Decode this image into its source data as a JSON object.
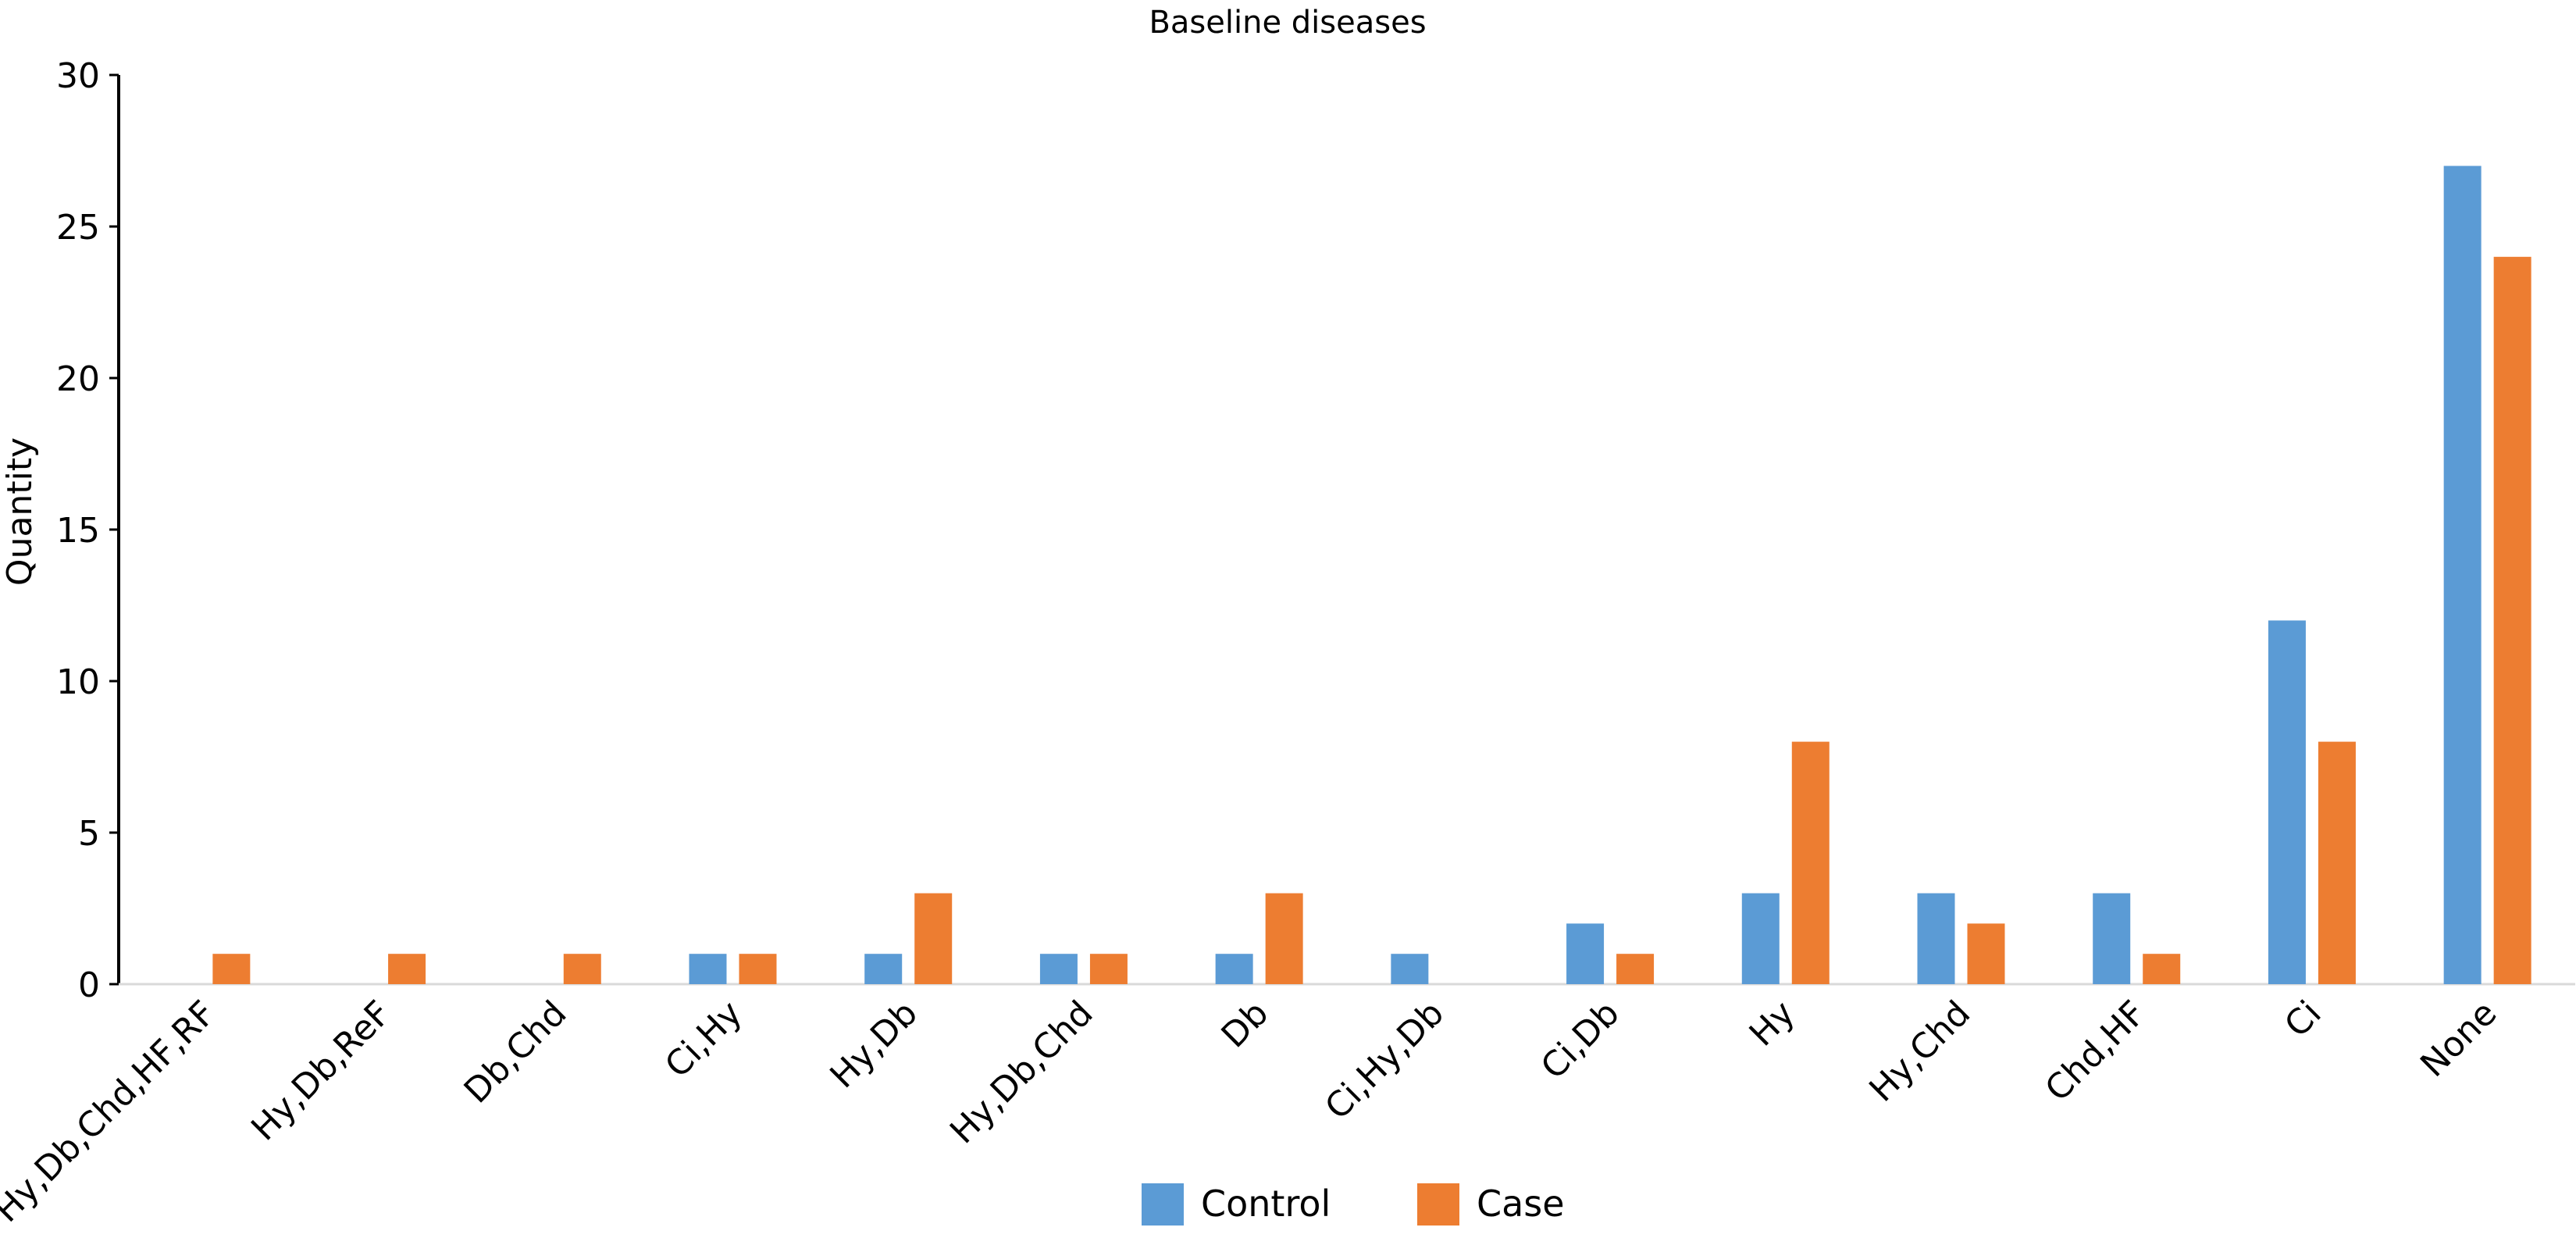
{
  "chart_data": {
    "type": "bar",
    "title": "Baseline diseases",
    "xlabel": "",
    "ylabel": "Quantity",
    "ylim": [
      0,
      30
    ],
    "yticks": [
      0,
      5,
      10,
      15,
      20,
      25,
      30
    ],
    "grid": false,
    "legend_position": "bottom",
    "categories": [
      "Hy,Db,Chd,HF,RF",
      "Hy,Db,ReF",
      "Db,Chd",
      "Ci,Hy",
      "Hy,Db",
      "Hy,Db,Chd",
      "Db",
      "Ci,Hy,Db",
      "Ci,Db",
      "Hy",
      "Hy,Chd",
      "Chd,HF",
      "Ci",
      "None"
    ],
    "series": [
      {
        "name": "Control",
        "color": "#5b9bd5",
        "values": [
          0,
          0,
          0,
          1,
          1,
          1,
          1,
          1,
          2,
          3,
          3,
          3,
          12,
          27
        ]
      },
      {
        "name": "Case",
        "color": "#ed7d31",
        "values": [
          1,
          1,
          1,
          1,
          3,
          1,
          3,
          0,
          1,
          8,
          2,
          1,
          8,
          24
        ]
      }
    ]
  }
}
